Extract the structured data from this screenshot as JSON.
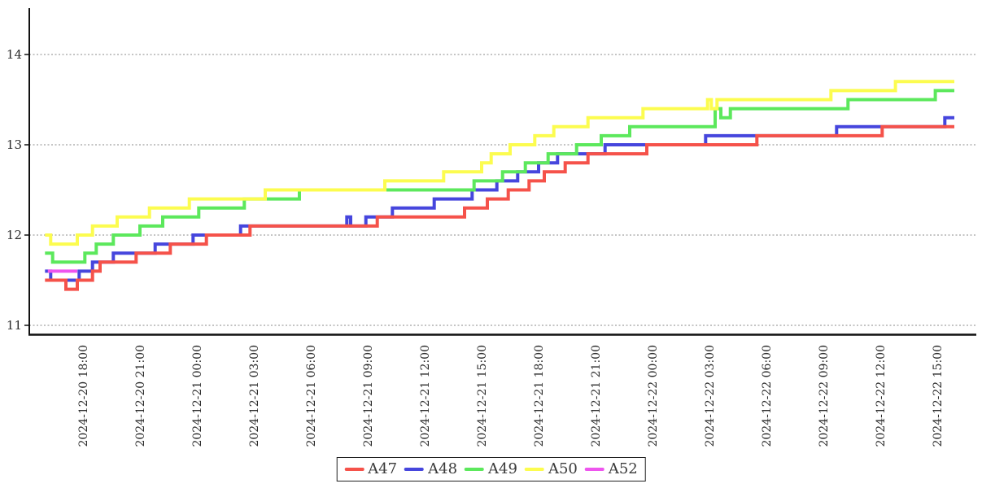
{
  "chart_data": {
    "type": "line",
    "subtype": "step-after",
    "title": "",
    "xlabel": "",
    "ylabel": "",
    "grid": "horizontal-dashed",
    "time_basis": "hours since 2024-12-20 16:00",
    "x_axis": {
      "tick_hours": [
        2,
        5,
        8,
        11,
        14,
        17,
        20,
        23,
        26,
        29,
        32,
        35,
        38,
        41,
        44,
        47
      ],
      "tick_labels": [
        "2024-12-20 18:00",
        "2024-12-20 21:00",
        "2024-12-21 00:00",
        "2024-12-21 03:00",
        "2024-12-21 06:00",
        "2024-12-21 09:00",
        "2024-12-21 12:00",
        "2024-12-21 15:00",
        "2024-12-21 18:00",
        "2024-12-21 21:00",
        "2024-12-22 00:00",
        "2024-12-22 03:00",
        "2024-12-22 06:00",
        "2024-12-22 09:00",
        "2024-12-22 12:00",
        "2024-12-22 15:00"
      ],
      "range_hours": [
        -0.8,
        49.0
      ]
    },
    "y_axis": {
      "ticks": [
        11,
        12,
        13,
        14
      ],
      "tick_labels": [
        "11",
        "12",
        "13",
        "14"
      ],
      "range": [
        10.9,
        14.5
      ]
    },
    "series": [
      {
        "name": "A47",
        "color": "#f5524a",
        "points": [
          [
            0,
            11.5
          ],
          [
            1.1,
            11.4
          ],
          [
            1.7,
            11.5
          ],
          [
            2.5,
            11.6
          ],
          [
            2.9,
            11.7
          ],
          [
            4.8,
            11.8
          ],
          [
            6.6,
            11.9
          ],
          [
            8.5,
            12.0
          ],
          [
            10.8,
            12.1
          ],
          [
            17.5,
            12.2
          ],
          [
            22.1,
            12.3
          ],
          [
            23.3,
            12.4
          ],
          [
            24.4,
            12.5
          ],
          [
            25.5,
            12.6
          ],
          [
            26.3,
            12.7
          ],
          [
            27.4,
            12.8
          ],
          [
            28.6,
            12.9
          ],
          [
            31.7,
            13.0
          ],
          [
            37.5,
            13.1
          ],
          [
            44.1,
            13.2
          ],
          [
            47.9,
            13.2
          ]
        ]
      },
      {
        "name": "A48",
        "color": "#4646dd",
        "points": [
          [
            0,
            11.6
          ],
          [
            0.3,
            11.5
          ],
          [
            1.8,
            11.6
          ],
          [
            2.5,
            11.7
          ],
          [
            3.6,
            11.8
          ],
          [
            5.8,
            11.9
          ],
          [
            7.8,
            12.0
          ],
          [
            10.3,
            12.1
          ],
          [
            15.9,
            12.2
          ],
          [
            16.1,
            12.1
          ],
          [
            16.9,
            12.2
          ],
          [
            18.3,
            12.3
          ],
          [
            20.5,
            12.4
          ],
          [
            22.5,
            12.5
          ],
          [
            23.8,
            12.6
          ],
          [
            24.9,
            12.7
          ],
          [
            26.0,
            12.8
          ],
          [
            27.0,
            12.9
          ],
          [
            29.5,
            13.0
          ],
          [
            34.8,
            13.1
          ],
          [
            41.7,
            13.2
          ],
          [
            47.4,
            13.3
          ],
          [
            47.9,
            13.3
          ]
        ]
      },
      {
        "name": "A49",
        "color": "#5ce85c",
        "points": [
          [
            0,
            11.8
          ],
          [
            0.4,
            11.7
          ],
          [
            2.1,
            11.8
          ],
          [
            2.7,
            11.9
          ],
          [
            3.6,
            12.0
          ],
          [
            5.0,
            12.1
          ],
          [
            6.2,
            12.2
          ],
          [
            8.1,
            12.3
          ],
          [
            10.5,
            12.4
          ],
          [
            13.4,
            12.5
          ],
          [
            22.6,
            12.6
          ],
          [
            24.1,
            12.7
          ],
          [
            25.3,
            12.8
          ],
          [
            26.5,
            12.9
          ],
          [
            28.0,
            13.0
          ],
          [
            29.3,
            13.1
          ],
          [
            30.8,
            13.2
          ],
          [
            35.3,
            13.4
          ],
          [
            35.6,
            13.3
          ],
          [
            36.1,
            13.4
          ],
          [
            42.3,
            13.5
          ],
          [
            46.9,
            13.6
          ],
          [
            47.9,
            13.6
          ]
        ]
      },
      {
        "name": "A50",
        "color": "#fcfc4f",
        "points": [
          [
            0,
            12.0
          ],
          [
            0.3,
            11.9
          ],
          [
            1.7,
            12.0
          ],
          [
            2.5,
            12.1
          ],
          [
            3.8,
            12.2
          ],
          [
            5.5,
            12.3
          ],
          [
            7.6,
            12.4
          ],
          [
            11.6,
            12.5
          ],
          [
            17.9,
            12.6
          ],
          [
            21.0,
            12.7
          ],
          [
            23.0,
            12.8
          ],
          [
            23.5,
            12.9
          ],
          [
            24.5,
            13.0
          ],
          [
            25.8,
            13.1
          ],
          [
            26.8,
            13.2
          ],
          [
            28.6,
            13.3
          ],
          [
            31.5,
            13.4
          ],
          [
            34.9,
            13.5
          ],
          [
            35.1,
            13.4
          ],
          [
            35.4,
            13.5
          ],
          [
            41.4,
            13.6
          ],
          [
            44.8,
            13.7
          ],
          [
            47.9,
            13.7
          ]
        ]
      },
      {
        "name": "A52",
        "color": "#ee55ee",
        "points": [
          [
            0.15,
            11.6
          ],
          [
            1.7,
            11.6
          ]
        ]
      }
    ],
    "draw_order": [
      "A48",
      "A47",
      "A52",
      "A49",
      "A50"
    ],
    "legend": {
      "position": "bottom-center",
      "entries": [
        "A47",
        "A48",
        "A49",
        "A50",
        "A52"
      ]
    },
    "colors": {
      "axis": "#111111",
      "grid": "#888888",
      "tick_text": "#2b2b2b",
      "background": "#ffffff"
    }
  }
}
